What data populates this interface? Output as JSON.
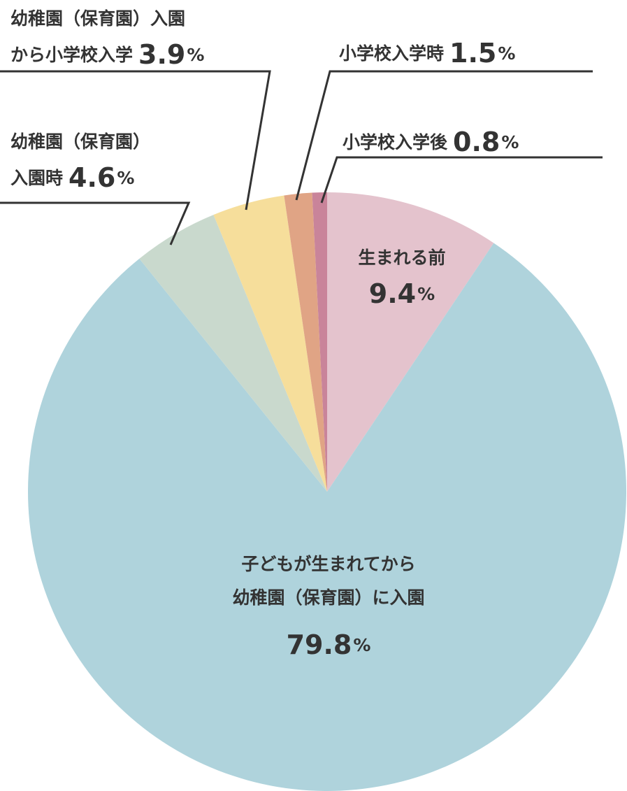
{
  "chart_data": {
    "type": "pie",
    "start_angle_deg": 0,
    "direction": "clockwise",
    "slices": [
      {
        "label_lines": [
          "生まれる前"
        ],
        "value": 9.4,
        "value_text": "9.4",
        "unit": "%",
        "color": "#e4c3cd"
      },
      {
        "label_lines": [
          "子どもが生まれてから",
          "幼稚園（保育園）に入園"
        ],
        "value": 79.8,
        "value_text": "79.8",
        "unit": "%",
        "color": "#afd3dc"
      },
      {
        "label_lines": [
          "幼稚園（保育園）",
          "入園時"
        ],
        "value": 4.6,
        "value_text": "4.6",
        "unit": "%",
        "color": "#c9d9cd"
      },
      {
        "label_lines": [
          "幼稚園（保育園）入園",
          "から小学校入学"
        ],
        "value": 3.9,
        "value_text": "3.9",
        "unit": "%",
        "color": "#f6de9b"
      },
      {
        "label_lines": [
          "小学校入学時"
        ],
        "value": 1.5,
        "value_text": "1.5",
        "unit": "%",
        "color": "#e0a485"
      },
      {
        "label_lines": [
          "小学校入学後"
        ],
        "value": 0.8,
        "value_text": "0.8",
        "unit": "%",
        "color": "#c9849a"
      }
    ]
  }
}
